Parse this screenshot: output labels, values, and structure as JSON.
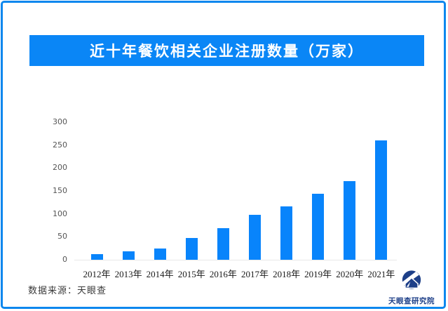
{
  "banner": {
    "title": "近十年餐饮相关企业注册数量（万家）",
    "bg_color": "#0a86f6",
    "text_color": "#ffffff"
  },
  "chart_data": {
    "type": "bar",
    "title": "近十年餐饮相关企业注册数量（万家）",
    "categories": [
      "2012年",
      "2013年",
      "2014年",
      "2015年",
      "2016年",
      "2017年",
      "2018年",
      "2019年",
      "2020年",
      "2021年"
    ],
    "values": [
      13,
      18,
      25,
      47,
      69,
      98,
      116,
      144,
      172,
      260
    ],
    "unit": "万家",
    "xlabel": "",
    "ylabel": "",
    "ylim": [
      0,
      300
    ],
    "yticks": [
      0,
      50,
      100,
      150,
      200,
      250,
      300
    ],
    "bar_color": "#0884fb",
    "grid": false,
    "legend": "none"
  },
  "footer": {
    "source": "数据来源：天眼查",
    "brand": "天眼查研究院"
  },
  "colors": {
    "frame_border": "#0d87ee",
    "axis_line": "#e8e8e8",
    "logo_navy": "#1d3f88"
  }
}
